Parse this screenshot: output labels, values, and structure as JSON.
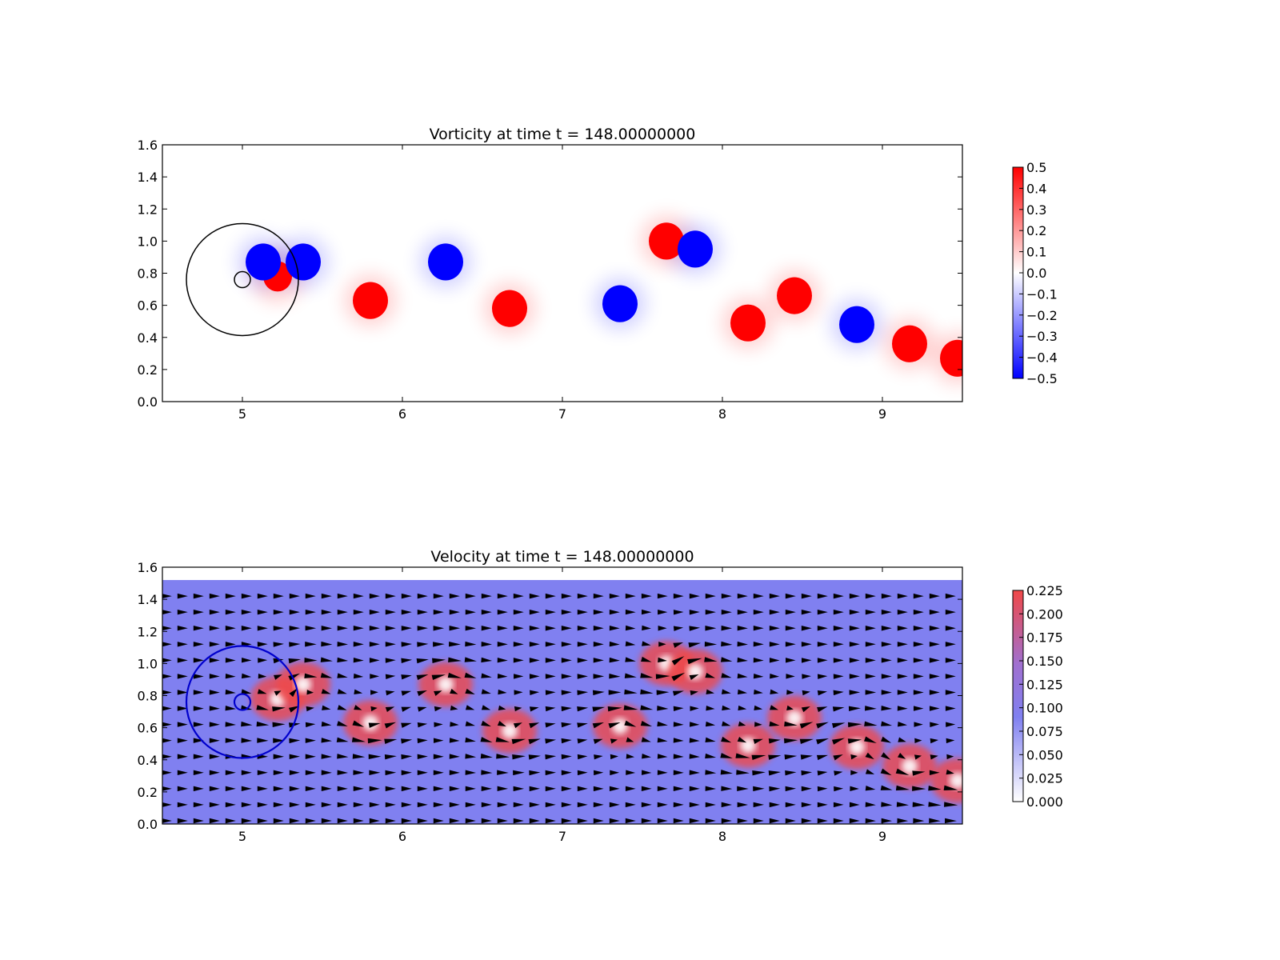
{
  "chart_data": [
    {
      "type": "heatmap",
      "title": "Vorticity at time t =   148.00000000",
      "xlabel": "",
      "ylabel": "",
      "xlim": [
        4.5,
        9.5
      ],
      "ylim": [
        0.0,
        1.6
      ],
      "xticks": [
        "5",
        "6",
        "7",
        "8",
        "9"
      ],
      "yticks": [
        "0.0",
        "0.2",
        "0.4",
        "0.6",
        "0.8",
        "1.0",
        "1.2",
        "1.4",
        "1.6"
      ],
      "colormap": "bwr",
      "colors": {
        "low": "#0000ff",
        "mid": "#ffffff",
        "high": "#ff0000"
      },
      "colorbar": {
        "range": [
          -0.5,
          0.5
        ],
        "ticks": [
          "0.5",
          "0.4",
          "0.3",
          "0.2",
          "0.1",
          "0.0",
          "−0.1",
          "−0.2",
          "−0.3",
          "−0.4",
          "−0.5"
        ]
      },
      "circles": [
        {
          "center": [
            5.0,
            0.76
          ],
          "radius": 0.35,
          "color": "#000000"
        },
        {
          "center": [
            5.0,
            0.76
          ],
          "radius": 0.05,
          "color": "#000000"
        }
      ],
      "vortices": [
        {
          "x": 5.22,
          "y": 0.78,
          "value": 0.5
        },
        {
          "x": 5.13,
          "y": 0.87,
          "value": -0.5
        },
        {
          "x": 5.38,
          "y": 0.87,
          "value": -0.5
        },
        {
          "x": 5.8,
          "y": 0.63,
          "value": 0.5
        },
        {
          "x": 6.27,
          "y": 0.87,
          "value": -0.5
        },
        {
          "x": 6.67,
          "y": 0.58,
          "value": 0.5
        },
        {
          "x": 7.36,
          "y": 0.61,
          "value": -0.5
        },
        {
          "x": 7.65,
          "y": 1.0,
          "value": 0.5
        },
        {
          "x": 7.83,
          "y": 0.95,
          "value": -0.5
        },
        {
          "x": 8.16,
          "y": 0.49,
          "value": 0.5
        },
        {
          "x": 8.45,
          "y": 0.66,
          "value": 0.5
        },
        {
          "x": 8.84,
          "y": 0.48,
          "value": -0.5
        },
        {
          "x": 9.17,
          "y": 0.36,
          "value": 0.5
        },
        {
          "x": 9.47,
          "y": 0.27,
          "value": 0.5
        }
      ]
    },
    {
      "type": "heatmap",
      "title": "Velocity at time t =   148.00000000",
      "xlabel": "",
      "ylabel": "",
      "xlim": [
        4.5,
        9.5
      ],
      "ylim": [
        0.0,
        1.6
      ],
      "xticks": [
        "5",
        "6",
        "7",
        "8",
        "9"
      ],
      "yticks": [
        "0.0",
        "0.2",
        "0.4",
        "0.6",
        "0.8",
        "1.0",
        "1.2",
        "1.4",
        "1.6"
      ],
      "field_ylim": [
        0.0,
        1.52
      ],
      "colors": {
        "low": "#ffffff",
        "mid": "#8080f0",
        "high": "#f04848",
        "arrow": "#000000"
      },
      "colorbar": {
        "range": [
          0.0,
          0.225
        ],
        "ticks": [
          "0.225",
          "0.200",
          "0.175",
          "0.150",
          "0.125",
          "0.100",
          "0.075",
          "0.050",
          "0.025",
          "0.000"
        ]
      },
      "background_speed": 0.1,
      "arrow_grid": {
        "x_start": 4.52,
        "x_step": 0.1,
        "y_start": 0.02,
        "y_step": 0.1
      },
      "circles": [
        {
          "center": [
            5.0,
            0.76
          ],
          "radius": 0.35,
          "color": "#0000cc"
        },
        {
          "center": [
            5.0,
            0.76
          ],
          "radius": 0.05,
          "color": "#0000cc"
        }
      ],
      "vortices": [
        {
          "x": 5.22,
          "y": 0.78,
          "sense": 1
        },
        {
          "x": 5.38,
          "y": 0.87,
          "sense": -1
        },
        {
          "x": 5.8,
          "y": 0.63,
          "sense": 1
        },
        {
          "x": 6.27,
          "y": 0.87,
          "sense": -1
        },
        {
          "x": 6.67,
          "y": 0.58,
          "sense": 1
        },
        {
          "x": 7.36,
          "y": 0.61,
          "sense": -1
        },
        {
          "x": 7.65,
          "y": 1.0,
          "sense": 1
        },
        {
          "x": 7.83,
          "y": 0.95,
          "sense": -1
        },
        {
          "x": 8.16,
          "y": 0.49,
          "sense": 1
        },
        {
          "x": 8.45,
          "y": 0.66,
          "sense": 1
        },
        {
          "x": 8.84,
          "y": 0.48,
          "sense": -1
        },
        {
          "x": 9.17,
          "y": 0.36,
          "sense": 1
        },
        {
          "x": 9.47,
          "y": 0.27,
          "sense": 1
        }
      ]
    }
  ]
}
